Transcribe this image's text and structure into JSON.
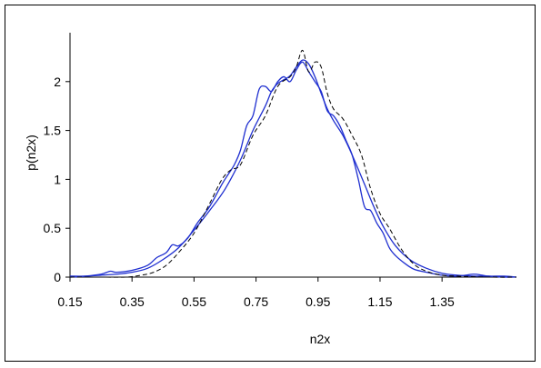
{
  "chart_data": {
    "type": "line",
    "title": "",
    "xlabel": "n2x",
    "ylabel": "p(n2x)",
    "xlim": [
      0.15,
      1.59
    ],
    "ylim": [
      0,
      2.5
    ],
    "x_ticks": [
      "0.15",
      "0.35",
      "0.55",
      "0.75",
      "0.95",
      "1.15",
      "1.35"
    ],
    "y_ticks": [
      "0",
      "0.5",
      "1",
      "1.5",
      "2"
    ],
    "grid": false,
    "legend": "none",
    "series": [
      {
        "color": "#1f2fd0",
        "dash": "solid",
        "x": [
          0.15,
          0.2,
          0.25,
          0.28,
          0.3,
          0.35,
          0.4,
          0.43,
          0.46,
          0.48,
          0.5,
          0.53,
          0.56,
          0.6,
          0.64,
          0.66,
          0.68,
          0.7,
          0.72,
          0.74,
          0.76,
          0.78,
          0.8,
          0.82,
          0.84,
          0.86,
          0.88,
          0.9,
          0.92,
          0.94,
          0.96,
          0.98,
          1.0,
          1.02,
          1.04,
          1.06,
          1.08,
          1.1,
          1.12,
          1.14,
          1.16,
          1.18,
          1.2,
          1.23,
          1.26,
          1.3,
          1.35,
          1.4,
          1.45,
          1.48,
          1.5,
          1.55,
          1.59
        ],
        "y": [
          0.0,
          0.01,
          0.03,
          0.06,
          0.05,
          0.07,
          0.12,
          0.2,
          0.25,
          0.33,
          0.32,
          0.4,
          0.55,
          0.72,
          0.95,
          1.05,
          1.15,
          1.3,
          1.55,
          1.65,
          1.92,
          1.95,
          1.9,
          2.0,
          2.05,
          2.0,
          2.12,
          2.2,
          2.1,
          2.0,
          1.9,
          1.7,
          1.65,
          1.55,
          1.4,
          1.25,
          1.0,
          0.72,
          0.68,
          0.55,
          0.45,
          0.3,
          0.22,
          0.14,
          0.08,
          0.05,
          0.02,
          0.01,
          0.03,
          0.02,
          0.01,
          0.01,
          0.0
        ]
      },
      {
        "color": "#1f2fd0",
        "dash": "solid",
        "x": [
          0.15,
          0.2,
          0.25,
          0.3,
          0.35,
          0.4,
          0.45,
          0.5,
          0.55,
          0.6,
          0.65,
          0.7,
          0.74,
          0.78,
          0.8,
          0.82,
          0.84,
          0.86,
          0.88,
          0.9,
          0.92,
          0.94,
          0.96,
          0.98,
          1.0,
          1.03,
          1.06,
          1.1,
          1.13,
          1.16,
          1.2,
          1.25,
          1.3,
          1.35,
          1.4,
          1.45,
          1.5,
          1.55,
          1.59
        ],
        "y": [
          0.01,
          0.01,
          0.02,
          0.03,
          0.05,
          0.09,
          0.18,
          0.3,
          0.48,
          0.68,
          0.9,
          1.2,
          1.5,
          1.75,
          1.9,
          1.98,
          2.02,
          2.06,
          2.15,
          2.22,
          2.18,
          2.05,
          1.88,
          1.72,
          1.6,
          1.45,
          1.25,
          0.95,
          0.72,
          0.52,
          0.32,
          0.17,
          0.09,
          0.04,
          0.02,
          0.01,
          0.01,
          0.0,
          0.0
        ]
      },
      {
        "color": "#000000",
        "dash": "dashed",
        "x": [
          0.15,
          0.25,
          0.33,
          0.38,
          0.42,
          0.46,
          0.5,
          0.55,
          0.6,
          0.64,
          0.67,
          0.7,
          0.74,
          0.78,
          0.82,
          0.86,
          0.88,
          0.9,
          0.92,
          0.94,
          0.96,
          0.98,
          1.0,
          1.03,
          1.06,
          1.09,
          1.12,
          1.15,
          1.18,
          1.22,
          1.26,
          1.3,
          1.35,
          1.4,
          1.5,
          1.59
        ],
        "y": [
          0.0,
          0.0,
          0.0,
          0.02,
          0.05,
          0.12,
          0.25,
          0.45,
          0.75,
          1.0,
          1.1,
          1.15,
          1.45,
          1.65,
          1.95,
          2.05,
          2.15,
          2.32,
          2.1,
          2.2,
          2.15,
          1.88,
          1.72,
          1.62,
          1.45,
          1.25,
          0.9,
          0.65,
          0.5,
          0.28,
          0.13,
          0.06,
          0.02,
          0.01,
          0.0,
          0.0
        ]
      }
    ]
  }
}
